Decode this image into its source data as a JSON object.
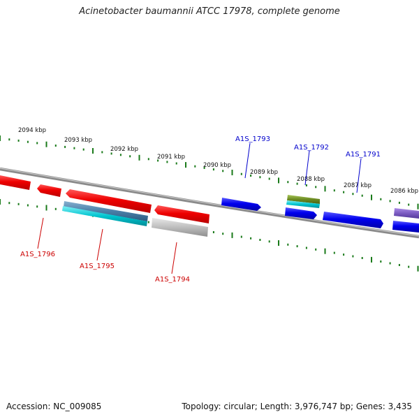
{
  "title": "Acinetobacter baumannii ATCC 17978, complete genome",
  "footer": {
    "accession": "Accession: NC_009085",
    "summary": "Topology: circular; Length: 3,976,747 bp; Genes: 3,435"
  },
  "scale_labels": [
    "2094 kbp",
    "2093 kbp",
    "2092 kbp",
    "2091 kbp",
    "2090 kbp",
    "2089 kbp",
    "2088 kbp",
    "2087 kbp",
    "2086 kbp"
  ],
  "gene_labels": {
    "top": [
      "A1S_1793",
      "A1S_1792",
      "A1S_1791"
    ],
    "bottom": [
      "A1S_1796",
      "A1S_1795",
      "A1S_1794"
    ]
  },
  "colors": {
    "backbone": "#8a8a8a",
    "ticks": "#1a7a1a",
    "label_top": "#0000cc",
    "label_bottom": "#cc0000",
    "gene_red": "#ee0000",
    "gene_blue": "#0000ee",
    "gene_teal": "#00bcc8",
    "gene_steel": "#4a7fa8",
    "gene_gray": "#b8b8b8",
    "gene_olive": "#6b8a22",
    "gene_purple": "#7a5ac0"
  }
}
